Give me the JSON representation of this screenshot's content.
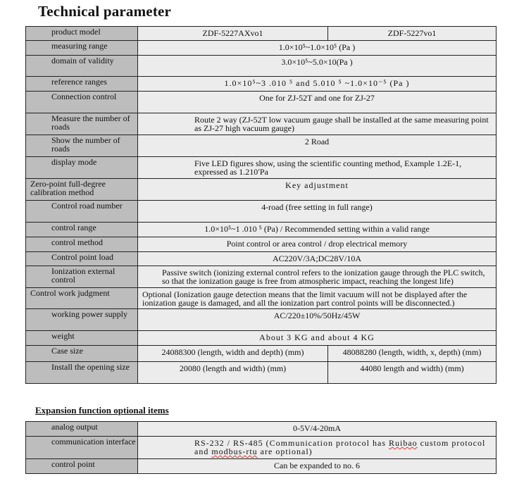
{
  "title": "Technical parameter",
  "params": {
    "rows": [
      {
        "label": "product model",
        "values": [
          "ZDF-5227AXvo1",
          "ZDF-5227vo1"
        ]
      },
      {
        "label": "measuring range",
        "values": [
          "1.0×10⁵~1.0×10⁵ (Pa )"
        ]
      },
      {
        "label": "domain of validity",
        "values": [
          "3.0×10⁵~5.0×10(Pa )"
        ]
      },
      {
        "label": "reference ranges",
        "values": [
          "1.0×10⁵~3 .010 ⁵ and 5.010 ⁵ ~1.0×10⁻⁵ (Pa )"
        ]
      },
      {
        "label": "Connection control",
        "values": [
          "One for ZJ-52T and one for ZJ-27"
        ]
      },
      {
        "label": "Measure the number of roads",
        "values": [
          "Route 2 way (ZJ-52T low vacuum gauge shall be installed at the same measuring point as ZJ-27 high vacuum gauge)"
        ]
      },
      {
        "label": "Show the number of roads",
        "values": [
          "2 Road"
        ]
      },
      {
        "label": "display mode",
        "values": [
          "Five LED figures show, using the scientific counting method, Example 1.2E-1, expressed as 1.210ʹPa"
        ]
      },
      {
        "label": "Zero-point full-degree calibration method",
        "values": [
          "Key adjustment"
        ]
      },
      {
        "label": "Control road number",
        "values": [
          "4-road (free setting in full range)"
        ]
      },
      {
        "label": "control range",
        "values": [
          "1.0×10⁵~1 .010 ⁵ (Pa) / Recommended setting within a valid range"
        ]
      },
      {
        "label": "control method",
        "values": [
          "Point control or area control / drop electrical memory"
        ]
      },
      {
        "label": "Control point load",
        "values": [
          "AC220V/3A;DC28V/10A"
        ]
      },
      {
        "label": "Ionization external control",
        "values": [
          "Passive switch (ionizing external control refers to the ionization gauge through the PLC switch, so that the ionization gauge is free from atmospheric impact, reaching the longest life)"
        ]
      },
      {
        "label": "Control work judgment",
        "values": [
          "Optional (Ionization gauge detection means that the limit vacuum will not be displayed after the ionization gauge is damaged, and all the ionization part control points will be disconnected.)"
        ]
      },
      {
        "label": "working power supply",
        "values": [
          "AC/220±10%/50Hz/45W"
        ]
      },
      {
        "label": "weight",
        "values": [
          "About 3 KG and about 4 KG"
        ]
      },
      {
        "label": "Case size",
        "values": [
          "24088300 (length, width and depth) (mm)",
          "48088280 (length, width, x, depth) (mm)"
        ]
      },
      {
        "label": "Install the opening size",
        "values": [
          "20080 (length and width) (mm)",
          "44080 length and width) (mm)"
        ]
      }
    ]
  },
  "expansion": {
    "title": "Expansion function optional items",
    "rows": [
      {
        "label": "analog output",
        "values": [
          "0-5V/4-20mA"
        ]
      },
      {
        "label": "communication interface",
        "values": [
          "RS-232 / RS-485 (Communication protocol has ",
          "Ruibao",
          " custom protocol and ",
          "modbus-rtu",
          " are optional)"
        ]
      },
      {
        "label": "control point",
        "values": [
          "Can be expanded to no. 6"
        ]
      }
    ]
  }
}
